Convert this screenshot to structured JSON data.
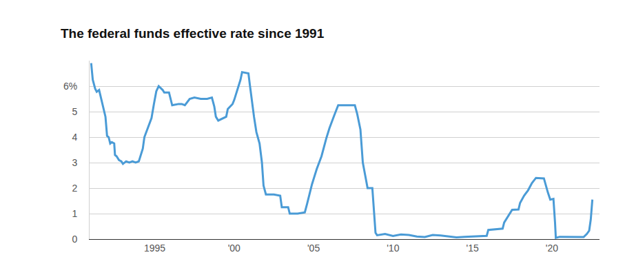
{
  "chart_data": {
    "type": "line",
    "title": "The federal funds effective rate since 1991",
    "x": [
      1991.0,
      1991.1,
      1991.25,
      1991.35,
      1991.5,
      1991.6,
      1991.75,
      1991.9,
      1992.0,
      1992.1,
      1992.2,
      1992.3,
      1992.45,
      1992.5,
      1992.6,
      1992.75,
      1992.9,
      1993.0,
      1993.2,
      1993.4,
      1993.6,
      1993.8,
      1994.0,
      1994.1,
      1994.25,
      1994.35,
      1994.5,
      1994.65,
      1994.8,
      1994.95,
      1995.1,
      1995.25,
      1995.5,
      1995.6,
      1995.9,
      1996.0,
      1996.1,
      1996.5,
      1996.7,
      1996.9,
      1997.2,
      1997.5,
      1997.9,
      1998.3,
      1998.6,
      1998.75,
      1998.85,
      1999.0,
      1999.3,
      1999.5,
      1999.6,
      1999.9,
      2000.0,
      2000.2,
      2000.4,
      2000.5,
      2000.9,
      2001.0,
      2001.1,
      2001.25,
      2001.4,
      2001.6,
      2001.75,
      2001.85,
      2002.0,
      2002.5,
      2002.9,
      2003.0,
      2003.4,
      2003.5,
      2004.0,
      2004.45,
      2004.6,
      2004.9,
      2005.2,
      2005.5,
      2005.8,
      2006.0,
      2006.3,
      2006.55,
      2007.0,
      2007.6,
      2007.75,
      2007.95,
      2008.1,
      2008.3,
      2008.4,
      2008.7,
      2008.8,
      2008.9,
      2009.0,
      2009.5,
      2010.0,
      2010.5,
      2011.0,
      2011.5,
      2012.0,
      2012.5,
      2013.0,
      2013.5,
      2014.0,
      2014.5,
      2015.0,
      2015.9,
      2016.0,
      2016.9,
      2017.0,
      2017.25,
      2017.5,
      2017.9,
      2018.0,
      2018.25,
      2018.5,
      2018.75,
      2019.0,
      2019.5,
      2019.6,
      2019.75,
      2019.9,
      2020.1,
      2020.2,
      2020.25,
      2020.5,
      2021.0,
      2021.5,
      2022.0,
      2022.2,
      2022.35,
      2022.45,
      2022.55
    ],
    "values": [
      6.9,
      6.25,
      5.9,
      5.78,
      5.85,
      5.6,
      5.2,
      4.8,
      4.05,
      4.0,
      3.75,
      3.8,
      3.75,
      3.3,
      3.25,
      3.1,
      3.05,
      2.95,
      3.05,
      3.0,
      3.05,
      3.0,
      3.05,
      3.25,
      3.55,
      4.0,
      4.25,
      4.5,
      4.75,
      5.3,
      5.8,
      6.0,
      5.85,
      5.75,
      5.75,
      5.5,
      5.25,
      5.3,
      5.3,
      5.25,
      5.5,
      5.55,
      5.5,
      5.5,
      5.55,
      5.2,
      4.8,
      4.65,
      4.75,
      4.8,
      5.1,
      5.3,
      5.45,
      5.85,
      6.25,
      6.55,
      6.5,
      6.0,
      5.5,
      4.8,
      4.2,
      3.75,
      3.0,
      2.1,
      1.75,
      1.75,
      1.7,
      1.25,
      1.25,
      1.0,
      1.0,
      1.05,
      1.4,
      2.15,
      2.75,
      3.25,
      3.95,
      4.35,
      4.85,
      5.25,
      5.25,
      5.25,
      4.9,
      4.3,
      3.0,
      2.3,
      2.0,
      2.0,
      1.0,
      0.25,
      0.15,
      0.2,
      0.12,
      0.18,
      0.16,
      0.1,
      0.08,
      0.16,
      0.14,
      0.1,
      0.07,
      0.09,
      0.11,
      0.13,
      0.36,
      0.41,
      0.65,
      0.91,
      1.15,
      1.16,
      1.42,
      1.7,
      1.91,
      2.2,
      2.4,
      2.38,
      2.13,
      1.83,
      1.55,
      1.58,
      0.65,
      0.05,
      0.09,
      0.09,
      0.08,
      0.08,
      0.2,
      0.33,
      0.77,
      1.55
    ],
    "color": "#4a9bd6",
    "line_style": "solid",
    "xlim": [
      1990.9,
      2023.0
    ],
    "xticks": [
      {
        "value": 1995,
        "label": "1995"
      },
      {
        "value": 2000,
        "label": "'00"
      },
      {
        "value": 2005,
        "label": "'05"
      },
      {
        "value": 2010,
        "label": "'10"
      },
      {
        "value": 2015,
        "label": "'15"
      },
      {
        "value": 2020,
        "label": "'20"
      }
    ],
    "ylim": [
      0,
      7
    ],
    "yticks": [
      0,
      1,
      2,
      3,
      4,
      5,
      {
        "value": 6,
        "label": "6%"
      }
    ],
    "grid": true
  }
}
